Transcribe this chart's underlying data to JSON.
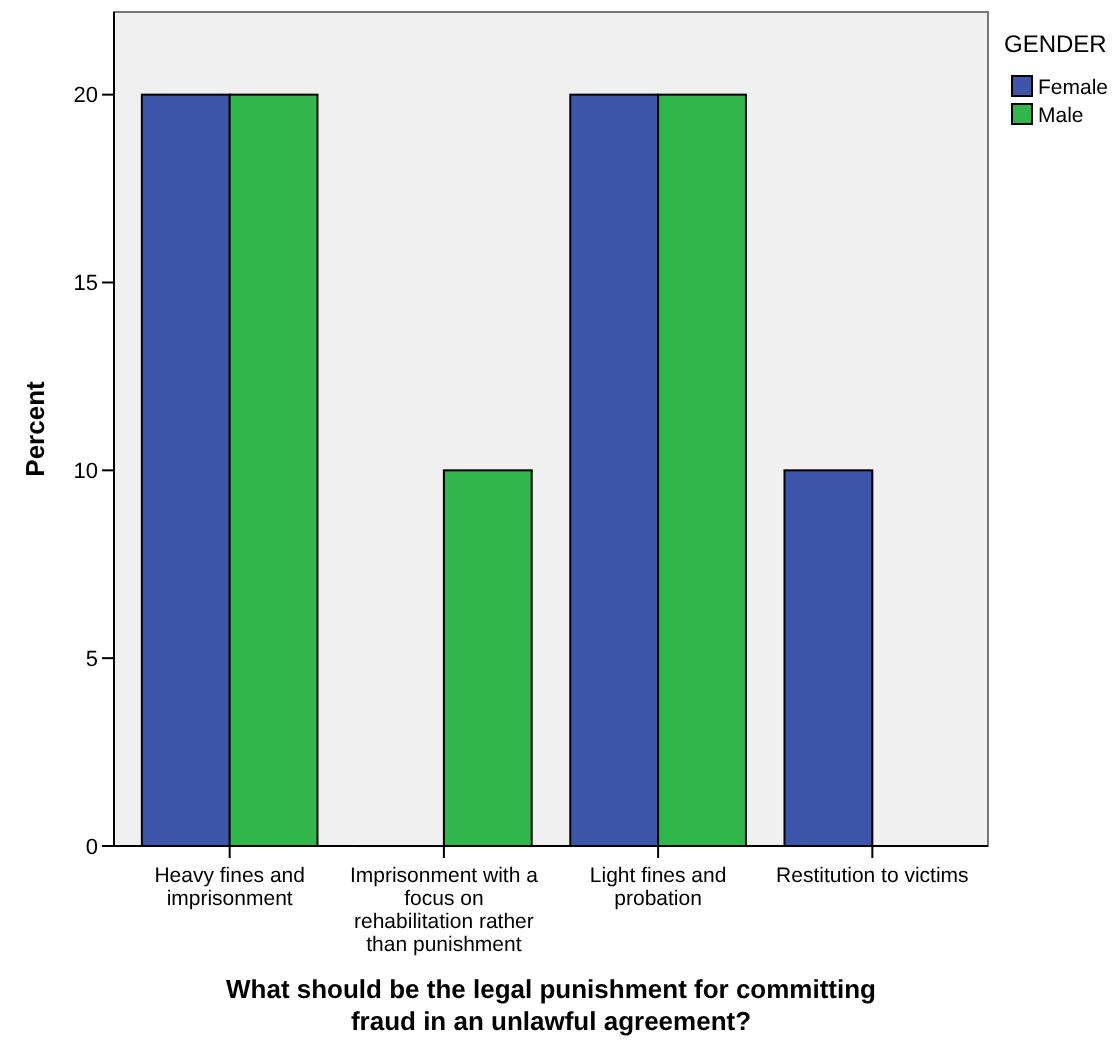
{
  "chart_data": {
    "type": "bar",
    "xlabel": "What should be the legal punishment for committing fraud in an unlawful agreement?",
    "ylabel": "Percent",
    "legend_title": "GENDER",
    "legend": "top right",
    "categories": [
      "Heavy fines and imprisonment",
      "Imprisonment with a focus on rehabilitation rather than punishment",
      "Light fines and probation",
      "Restitution to victims"
    ],
    "series": [
      {
        "name": "Female",
        "color": "#3e56a9",
        "values": [
          20,
          0,
          20,
          10
        ]
      },
      {
        "name": "Male",
        "color": "#30b64a",
        "values": [
          20,
          10,
          20,
          0
        ]
      }
    ],
    "ylim": [
      0,
      22.2
    ],
    "yticks": [
      0,
      5,
      10,
      15,
      20
    ],
    "grid": false
  }
}
